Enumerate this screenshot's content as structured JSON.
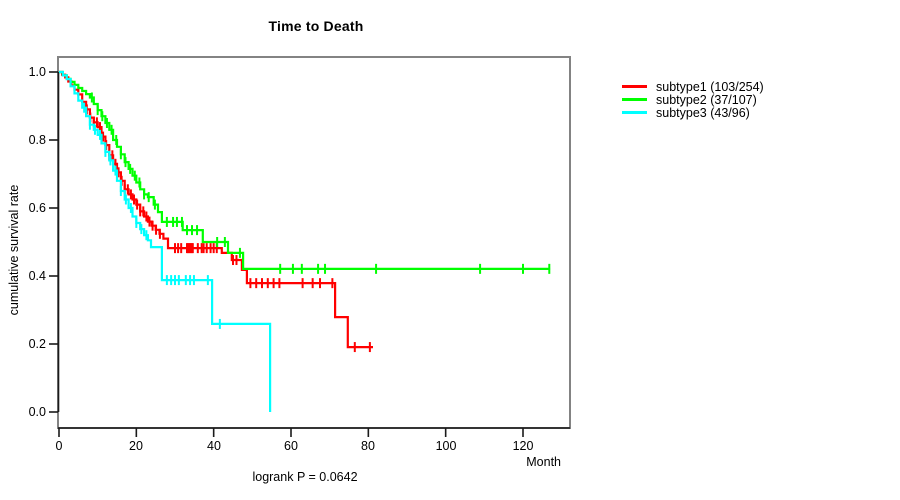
{
  "chart_data": {
    "type": "line",
    "variant": "kaplan-meier-step",
    "title": "Time to Death",
    "xlabel": "Month",
    "ylabel": "cumulative survival rate",
    "annotation": "logrank P = 0.0642",
    "xlim": [
      0,
      132
    ],
    "ylim": [
      0.0,
      1.0
    ],
    "grid": false,
    "legend_position": "right-outside",
    "x_ticks": [
      0,
      20,
      40,
      60,
      80,
      100,
      120
    ],
    "y_ticks": [
      1.0,
      0.8,
      0.6,
      0.4,
      0.2,
      0.0
    ],
    "x_tick_labels": [
      "0",
      "20",
      "40",
      "60",
      "80",
      "100",
      "120"
    ],
    "y_tick_labels": [
      "1.0",
      "0.8",
      "0.6",
      "0.4",
      "0.2",
      "0.0"
    ],
    "series": [
      {
        "name": "subtype1 (103/254)",
        "color": "#ff0000",
        "steps": [
          [
            0,
            1.0
          ],
          [
            0.8,
            0.992
          ],
          [
            1.6,
            0.984
          ],
          [
            2.4,
            0.972
          ],
          [
            3.2,
            0.96
          ],
          [
            4,
            0.948
          ],
          [
            5,
            0.934
          ],
          [
            6,
            0.912
          ],
          [
            7,
            0.89
          ],
          [
            8,
            0.866
          ],
          [
            9,
            0.852
          ],
          [
            10,
            0.838
          ],
          [
            11,
            0.81
          ],
          [
            12,
            0.785
          ],
          [
            13,
            0.755
          ],
          [
            14,
            0.73
          ],
          [
            15,
            0.705
          ],
          [
            16,
            0.68
          ],
          [
            17,
            0.655
          ],
          [
            18,
            0.64
          ],
          [
            19,
            0.625
          ],
          [
            20,
            0.61
          ],
          [
            21,
            0.59
          ],
          [
            22,
            0.575
          ],
          [
            23,
            0.56
          ],
          [
            24,
            0.548
          ],
          [
            25,
            0.536
          ],
          [
            26,
            0.524
          ],
          [
            27,
            0.51
          ],
          [
            28.2,
            0.482
          ],
          [
            42.1,
            0.468
          ],
          [
            44.7,
            0.447
          ],
          [
            47.3,
            0.418
          ],
          [
            48.6,
            0.379
          ],
          [
            71.4,
            0.279
          ],
          [
            74.7,
            0.191
          ],
          [
            81.2,
            0.191
          ]
        ],
        "censor_times": [
          7.2,
          8.1,
          9.0,
          9.8,
          10.6,
          11.4,
          12.2,
          13.0,
          13.8,
          14.6,
          15.4,
          16.2,
          17.0,
          17.8,
          18.6,
          19.4,
          20.2,
          21.0,
          21.8,
          22.6,
          23.4,
          24.2,
          25.1,
          26.1,
          30.0,
          30.8,
          31.6,
          33.1,
          33.4,
          33.7,
          34.0,
          34.3,
          34.6,
          35.9,
          36.9,
          37.4,
          38.2,
          39.2,
          40.0,
          40.8,
          45.0,
          45.9,
          49.5,
          51.0,
          52.5,
          54.0,
          55.5,
          57.0,
          63.0,
          65.6,
          67.5,
          70.7,
          76.5,
          80.4
        ]
      },
      {
        "name": "subtype2 (37/107)",
        "color": "#00ff00",
        "steps": [
          [
            0,
            1.0
          ],
          [
            1,
            0.99
          ],
          [
            2,
            0.98
          ],
          [
            3,
            0.971
          ],
          [
            4,
            0.962
          ],
          [
            5,
            0.953
          ],
          [
            6,
            0.944
          ],
          [
            7,
            0.935
          ],
          [
            8,
            0.925
          ],
          [
            9,
            0.906
          ],
          [
            10,
            0.888
          ],
          [
            11,
            0.87
          ],
          [
            12,
            0.85
          ],
          [
            13,
            0.83
          ],
          [
            14,
            0.8
          ],
          [
            15,
            0.78
          ],
          [
            16,
            0.758
          ],
          [
            17,
            0.735
          ],
          [
            18,
            0.715
          ],
          [
            19,
            0.695
          ],
          [
            20,
            0.675
          ],
          [
            21,
            0.655
          ],
          [
            22,
            0.64
          ],
          [
            23,
            0.632
          ],
          [
            24.5,
            0.61
          ],
          [
            25.6,
            0.588
          ],
          [
            26.6,
            0.559
          ],
          [
            32,
            0.535
          ],
          [
            37.2,
            0.5
          ],
          [
            43.7,
            0.468
          ],
          [
            47.6,
            0.421
          ],
          [
            127,
            0.421
          ]
        ],
        "censor_times": [
          8.5,
          10.0,
          11.2,
          12.4,
          13.6,
          14.8,
          16.0,
          17.2,
          18.4,
          19.6,
          20.8,
          22.0,
          23.2,
          24.8,
          27.9,
          29.5,
          30.5,
          31.8,
          33.1,
          34.4,
          35.7,
          40.9,
          42.9,
          46.8,
          57.2,
          60.5,
          62.8,
          67.0,
          68.8,
          82.0,
          108.9,
          120.0,
          126.8
        ]
      },
      {
        "name": "subtype3 (43/96)",
        "color": "#00ffff",
        "steps": [
          [
            0,
            1.0
          ],
          [
            1,
            0.99
          ],
          [
            2,
            0.979
          ],
          [
            3,
            0.958
          ],
          [
            4,
            0.937
          ],
          [
            5,
            0.916
          ],
          [
            6,
            0.895
          ],
          [
            7,
            0.87
          ],
          [
            8,
            0.845
          ],
          [
            9,
            0.83
          ],
          [
            10,
            0.815
          ],
          [
            11,
            0.79
          ],
          [
            12,
            0.765
          ],
          [
            13,
            0.74
          ],
          [
            14,
            0.71
          ],
          [
            15,
            0.68
          ],
          [
            16,
            0.65
          ],
          [
            17,
            0.625
          ],
          [
            18,
            0.6
          ],
          [
            19,
            0.575
          ],
          [
            20,
            0.556
          ],
          [
            21,
            0.538
          ],
          [
            22,
            0.52
          ],
          [
            23,
            0.505
          ],
          [
            23.8,
            0.485
          ],
          [
            26.6,
            0.388
          ],
          [
            39.6,
            0.259
          ],
          [
            54.6,
            0.0
          ]
        ],
        "censor_times": [
          6.5,
          8.0,
          9.3,
          10.6,
          12.0,
          13.3,
          14.6,
          16.0,
          17.3,
          18.6,
          20.0,
          21.3,
          22.6,
          27.9,
          29.0,
          30.0,
          31.0,
          32.8,
          33.9,
          34.9,
          38.5,
          41.6
        ]
      }
    ]
  }
}
